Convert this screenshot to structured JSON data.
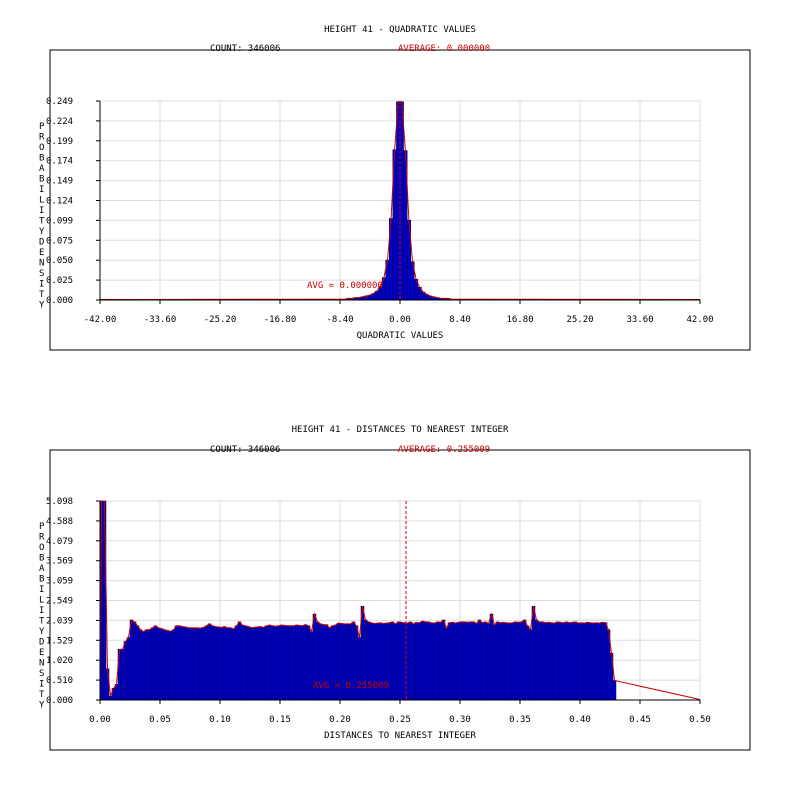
{
  "colors": {
    "bar_fill": "#0000cc",
    "bar_stroke": "#000033",
    "curve": "#cc0000",
    "avg": "#cc0000",
    "grid": "#dddddd",
    "axis": "#000000"
  },
  "chart_data": [
    {
      "type": "bar",
      "title": "HEIGHT 41 - QUADRATIC VALUES",
      "count_text": "COUNT: 346006",
      "average_text": "AVERAGE: 0.000000",
      "avg_label": "AVG = 0.000000",
      "avg_value": 0.0,
      "xlabel": "QUADRATIC VALUES",
      "ylabel": "PROBABILITY DENSITY",
      "xlim": [
        -42,
        42
      ],
      "ylim": [
        0,
        0.249
      ],
      "xticks": [
        "-42.00",
        "-33.60",
        "-25.20",
        "-16.80",
        "-8.40",
        "0.00",
        "8.40",
        "16.80",
        "25.20",
        "33.60",
        "42.00"
      ],
      "yticks": [
        "0.000",
        "0.025",
        "0.050",
        "0.075",
        "0.099",
        "0.124",
        "0.149",
        "0.174",
        "0.199",
        "0.224",
        "0.249"
      ],
      "x_start": -13.5,
      "bin_width": 0.5,
      "values": [
        0.001,
        0.001,
        0.001,
        0.001,
        0.001,
        0.001,
        0.001,
        0.001,
        0.001,
        0.001,
        0.001,
        0.001,
        0.002,
        0.002,
        0.003,
        0.003,
        0.004,
        0.005,
        0.006,
        0.008,
        0.011,
        0.017,
        0.028,
        0.05,
        0.102,
        0.188,
        0.248,
        0.248,
        0.187,
        0.1,
        0.048,
        0.026,
        0.016,
        0.01,
        0.007,
        0.005,
        0.004,
        0.003,
        0.002,
        0.002,
        0.002,
        0.001,
        0.001,
        0.001,
        0.001,
        0.001,
        0.001,
        0.001,
        0.001,
        0.001,
        0.001,
        0.001,
        0.001
      ]
    },
    {
      "type": "bar",
      "title": "HEIGHT 41 - DISTANCES TO NEAREST INTEGER",
      "count_text": "COUNT: 346006",
      "average_text": "AVERAGE: 0.255009",
      "avg_label": "AVG = 0.255009",
      "avg_value": 0.255009,
      "xlabel": "DISTANCES TO NEAREST INTEGER",
      "ylabel": "PROBABILITY DENSITY",
      "xlim": [
        0,
        0.5
      ],
      "ylim": [
        0,
        5.098
      ],
      "xticks": [
        "0.00",
        "0.05",
        "0.10",
        "0.15",
        "0.20",
        "0.25",
        "0.30",
        "0.35",
        "0.40",
        "0.45",
        "0.50"
      ],
      "yticks": [
        "0.000",
        "0.510",
        "1.020",
        "1.529",
        "2.039",
        "2.549",
        "3.059",
        "3.569",
        "4.079",
        "4.588",
        "5.098"
      ],
      "x_start": 0.0,
      "bin_width": 0.0025,
      "values": [
        5.098,
        5.098,
        0.8,
        0.1,
        0.3,
        0.4,
        1.3,
        1.3,
        1.5,
        1.6,
        2.05,
        2.0,
        1.9,
        1.8,
        1.75,
        1.8,
        1.8,
        1.85,
        1.9,
        1.85,
        1.83,
        1.8,
        1.78,
        1.76,
        1.8,
        1.9,
        1.9,
        1.88,
        1.87,
        1.85,
        1.85,
        1.85,
        1.85,
        1.84,
        1.86,
        1.9,
        1.95,
        1.9,
        1.88,
        1.87,
        1.86,
        1.88,
        1.85,
        1.85,
        1.82,
        1.9,
        2.0,
        1.92,
        1.9,
        1.88,
        1.85,
        1.86,
        1.87,
        1.88,
        1.86,
        1.9,
        1.92,
        1.9,
        1.89,
        1.9,
        1.92,
        1.91,
        1.9,
        1.9,
        1.9,
        1.92,
        1.91,
        1.9,
        1.93,
        1.9,
        1.75,
        2.2,
        2.0,
        1.95,
        1.93,
        1.93,
        1.85,
        1.9,
        1.92,
        1.97,
        1.96,
        1.95,
        1.95,
        1.95,
        2.0,
        1.9,
        1.6,
        2.4,
        2.05,
        2.0,
        1.98,
        1.96,
        1.97,
        1.98,
        1.96,
        1.97,
        1.98,
        2.0,
        1.95,
        2.0,
        1.99,
        1.98,
        1.97,
        2.0,
        1.95,
        1.99,
        1.98,
        2.02,
        2.0,
        2.0,
        1.98,
        1.97,
        2.0,
        1.99,
        2.05,
        1.85,
        1.98,
        1.99,
        1.97,
        1.99,
        2.0,
        2.0,
        1.99,
        2.0,
        2.0,
        1.96,
        2.05,
        1.98,
        2.0,
        1.96,
        2.2,
        1.93,
        2.0,
        1.98,
        1.99,
        1.98,
        1.97,
        1.98,
        2.0,
        1.99,
        2.0,
        2.05,
        1.9,
        1.8,
        2.4,
        2.05,
        2.0,
        2.0,
        1.98,
        1.99,
        1.98,
        1.97,
        2.0,
        1.99,
        1.98,
        2.0,
        1.98,
        1.99,
        2.0,
        1.97,
        1.98,
        1.97,
        1.99,
        1.98,
        1.97,
        1.98,
        1.97,
        1.99,
        1.98,
        1.8,
        1.2,
        0.5
      ]
    }
  ]
}
